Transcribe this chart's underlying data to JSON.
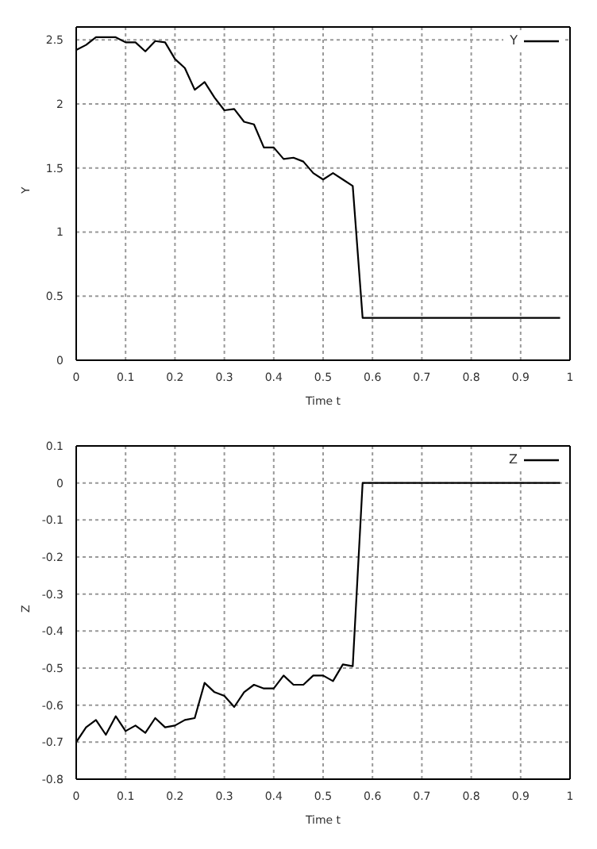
{
  "chart_data": [
    {
      "type": "line",
      "xlabel": "Time t",
      "ylabel": "Y",
      "xlim": [
        0,
        1
      ],
      "xticks": [
        0,
        0.1,
        0.2,
        0.3,
        0.4,
        0.5,
        0.6,
        0.7,
        0.8,
        0.9,
        1
      ],
      "ylim": [
        0,
        2.6
      ],
      "yticks": [
        0,
        0.5,
        1,
        1.5,
        2,
        2.5
      ],
      "grid": true,
      "legend": "top right",
      "marker": "none",
      "line_style": "solid",
      "x": [
        0,
        0.02,
        0.04,
        0.06,
        0.08,
        0.1,
        0.12,
        0.14,
        0.16,
        0.18,
        0.2,
        0.22,
        0.24,
        0.26,
        0.28,
        0.3,
        0.32,
        0.34,
        0.36,
        0.38,
        0.4,
        0.42,
        0.44,
        0.46,
        0.48,
        0.5,
        0.52,
        0.54,
        0.56,
        0.58,
        0.98
      ],
      "series": [
        {
          "name": "Y",
          "color": "#000000",
          "values": [
            2.42,
            2.46,
            2.52,
            2.52,
            2.52,
            2.48,
            2.48,
            2.41,
            2.49,
            2.48,
            2.35,
            2.28,
            2.11,
            2.17,
            2.05,
            1.95,
            1.96,
            1.86,
            1.84,
            1.66,
            1.66,
            1.57,
            1.58,
            1.55,
            1.46,
            1.41,
            1.46,
            1.41,
            1.36,
            0.33,
            0.33
          ]
        }
      ]
    },
    {
      "type": "line",
      "xlabel": "Time t",
      "ylabel": "Z",
      "xlim": [
        0,
        1
      ],
      "xticks": [
        0,
        0.1,
        0.2,
        0.3,
        0.4,
        0.5,
        0.6,
        0.7,
        0.8,
        0.9,
        1
      ],
      "ylim": [
        -0.8,
        0.1
      ],
      "yticks": [
        -0.8,
        -0.7,
        -0.6,
        -0.5,
        -0.4,
        -0.3,
        -0.2,
        -0.1,
        0,
        0.1
      ],
      "grid": true,
      "legend": "top right",
      "marker": "none",
      "line_style": "solid",
      "x": [
        0,
        0.02,
        0.04,
        0.06,
        0.08,
        0.1,
        0.12,
        0.14,
        0.16,
        0.18,
        0.2,
        0.22,
        0.24,
        0.26,
        0.28,
        0.3,
        0.32,
        0.34,
        0.36,
        0.38,
        0.4,
        0.42,
        0.44,
        0.46,
        0.48,
        0.5,
        0.52,
        0.54,
        0.56,
        0.58,
        0.98
      ],
      "series": [
        {
          "name": "Z",
          "color": "#000000",
          "values": [
            -0.7,
            -0.66,
            -0.64,
            -0.68,
            -0.63,
            -0.67,
            -0.655,
            -0.675,
            -0.635,
            -0.66,
            -0.655,
            -0.64,
            -0.635,
            -0.54,
            -0.565,
            -0.575,
            -0.605,
            -0.565,
            -0.545,
            -0.555,
            -0.555,
            -0.52,
            -0.545,
            -0.545,
            -0.52,
            -0.52,
            -0.535,
            -0.49,
            -0.495,
            0,
            0
          ]
        }
      ]
    }
  ]
}
